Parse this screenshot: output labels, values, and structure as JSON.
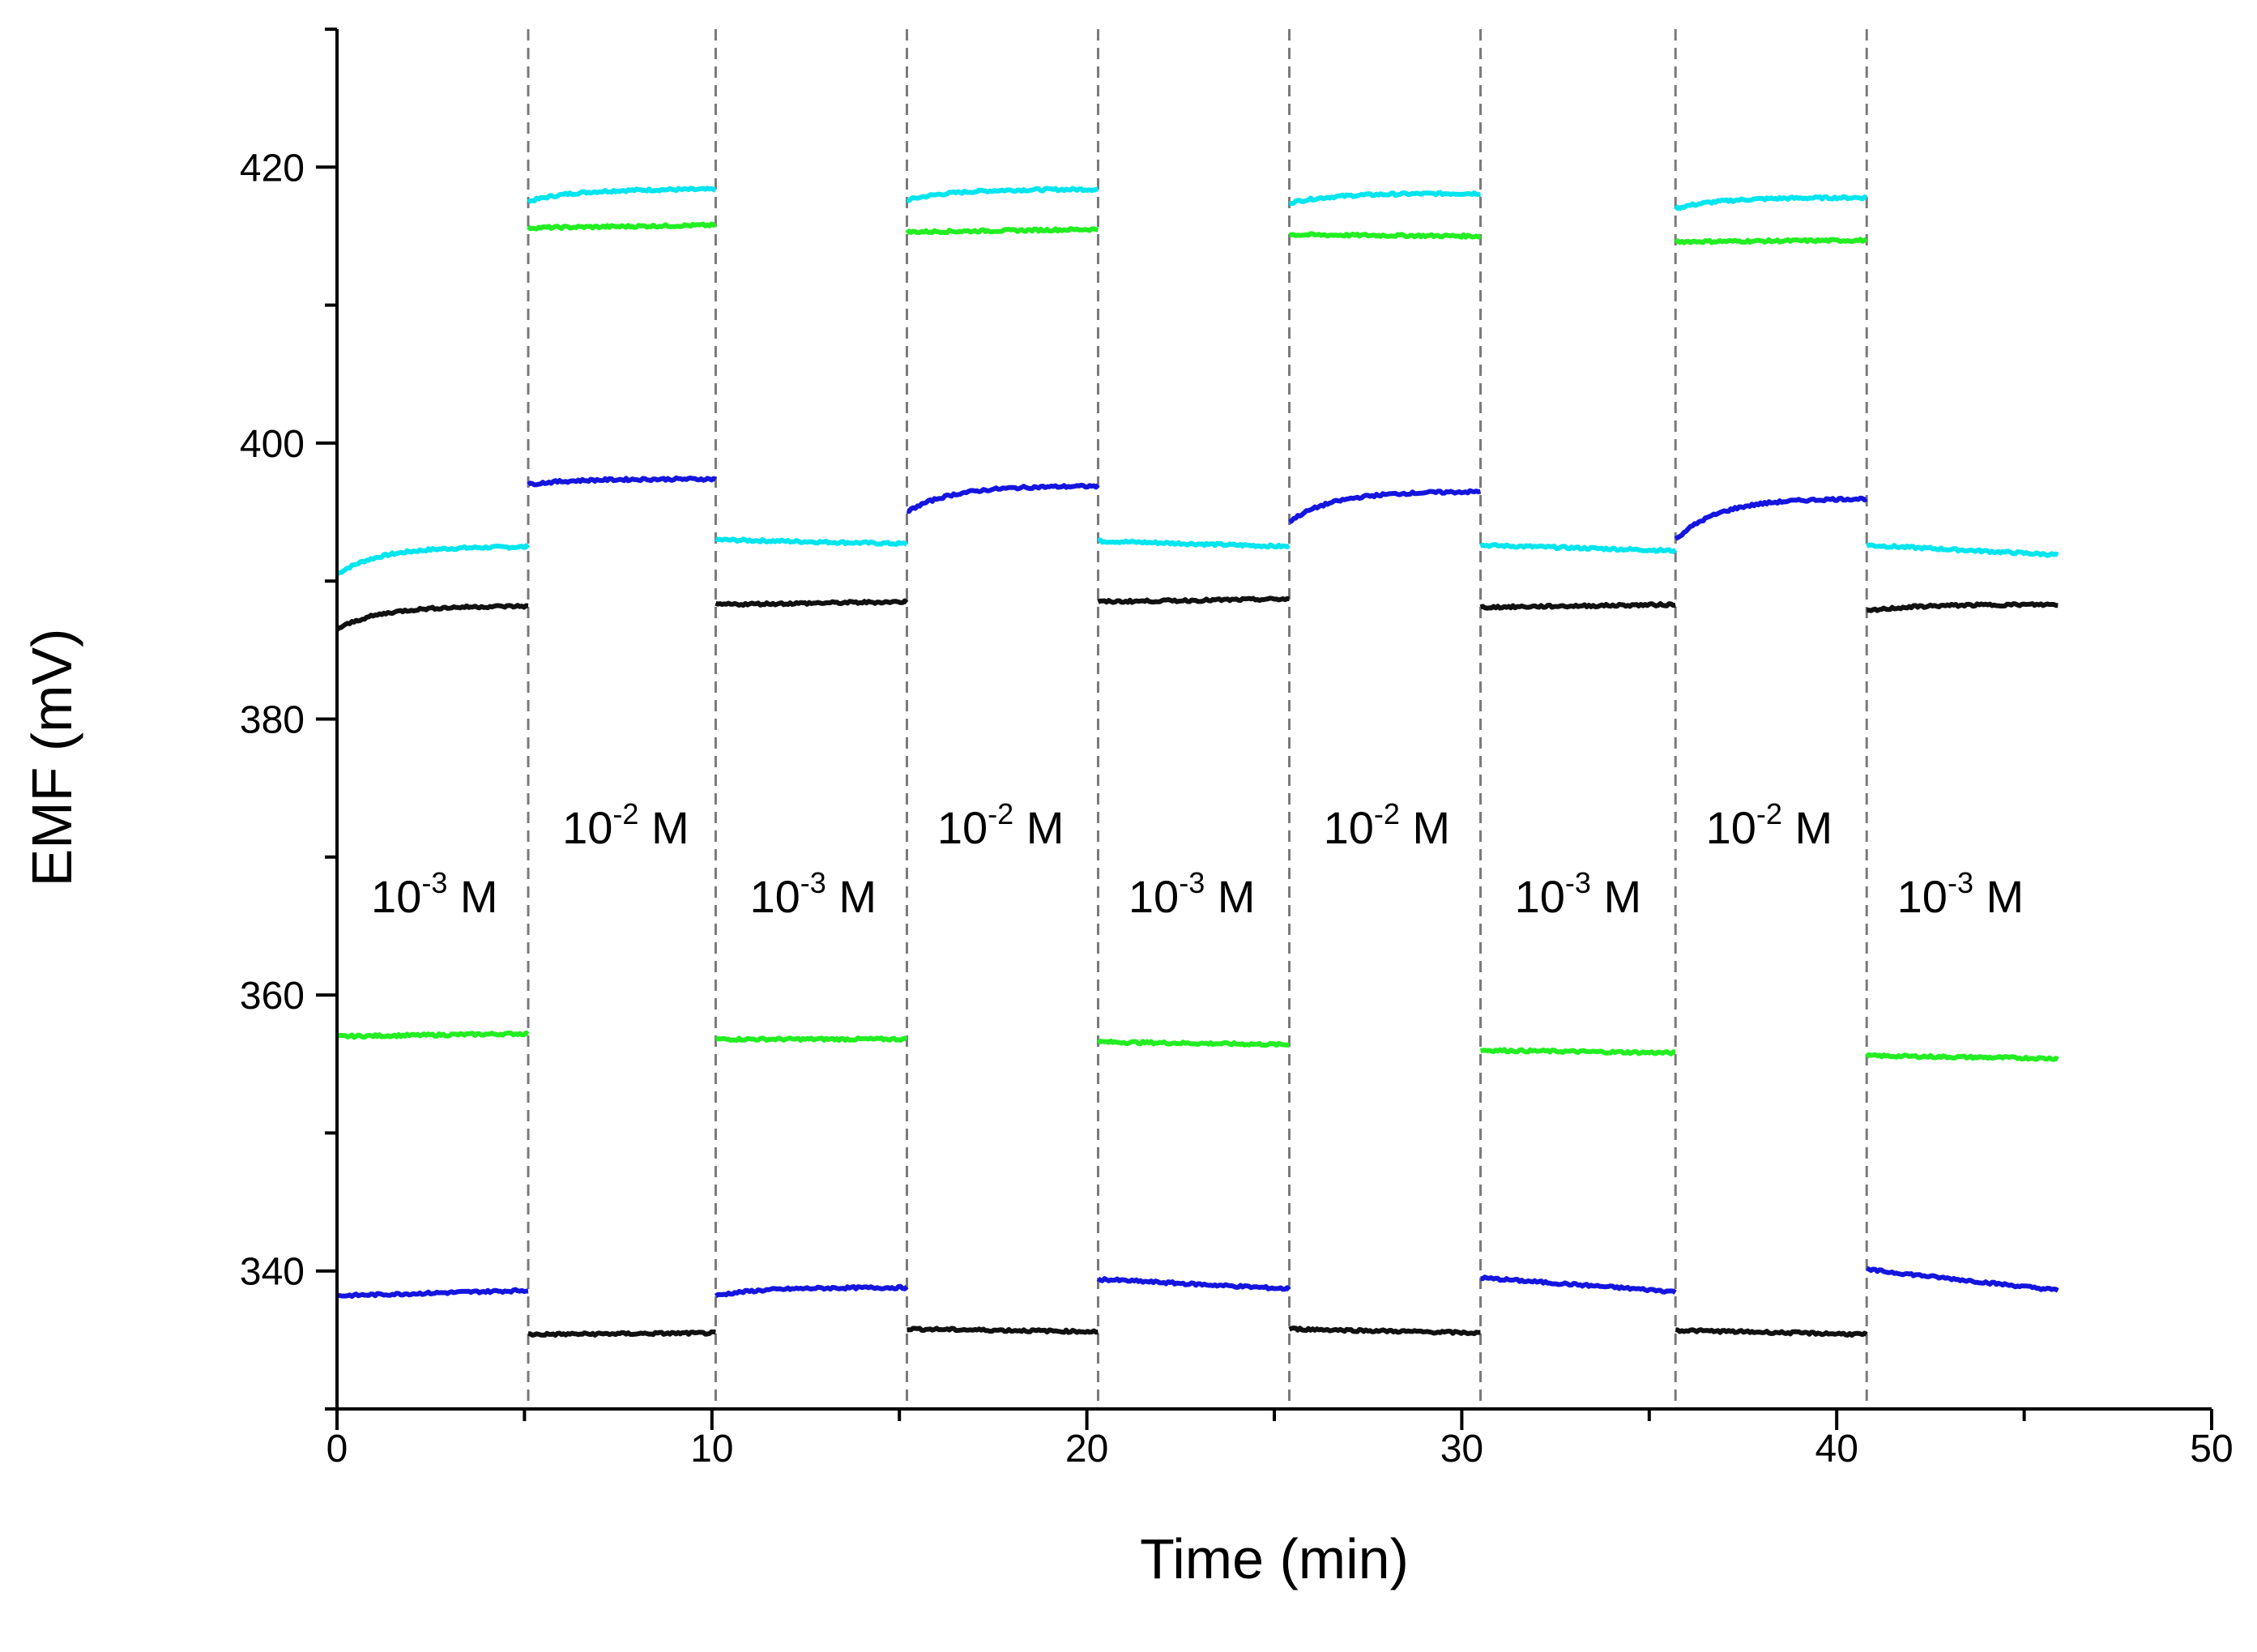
{
  "chart_data": {
    "type": "line",
    "title": "",
    "xlabel": "Time (min)",
    "ylabel": "EMF (mV)",
    "xlim": [
      0,
      50
    ],
    "ylim": [
      330,
      430
    ],
    "xticks": [
      0,
      10,
      20,
      30,
      40,
      50
    ],
    "yticks": [
      340,
      360,
      380,
      400,
      420
    ],
    "x_tick_labels": [
      "0",
      "10",
      "20",
      "30",
      "40",
      "50"
    ],
    "y_tick_labels": [
      "340",
      "360",
      "380",
      "400",
      "420"
    ],
    "boundaries": [
      5.1,
      10.1,
      15.2,
      20.3,
      25.4,
      30.5,
      35.7,
      40.8
    ],
    "concentration_labels": [
      {
        "base": "10",
        "exp": "-3",
        "unit": " M",
        "x": 2.6,
        "y": 366
      },
      {
        "base": "10",
        "exp": "-2",
        "unit": " M",
        "x": 7.7,
        "y": 371
      },
      {
        "base": "10",
        "exp": "-3",
        "unit": " M",
        "x": 12.7,
        "y": 366
      },
      {
        "base": "10",
        "exp": "-2",
        "unit": " M",
        "x": 17.7,
        "y": 371
      },
      {
        "base": "10",
        "exp": "-3",
        "unit": " M",
        "x": 22.8,
        "y": 366
      },
      {
        "base": "10",
        "exp": "-2",
        "unit": " M",
        "x": 28.0,
        "y": 371
      },
      {
        "base": "10",
        "exp": "-3",
        "unit": " M",
        "x": 33.1,
        "y": 366
      },
      {
        "base": "10",
        "exp": "-2",
        "unit": " M",
        "x": 38.2,
        "y": 371
      },
      {
        "base": "10",
        "exp": "-3",
        "unit": " M",
        "x": 43.3,
        "y": 366
      }
    ],
    "series": [
      {
        "name": "cyan",
        "color": "#00e5ee",
        "segments": [
          {
            "t": [
              0,
              5.1
            ],
            "y": [
              390.5,
              392.5
            ],
            "shape": "rise"
          },
          {
            "t": [
              5.1,
              10.1
            ],
            "y": [
              417.5,
              418.4
            ],
            "shape": "rise"
          },
          {
            "t": [
              10.1,
              15.2
            ],
            "y": [
              393.0,
              392.7
            ],
            "shape": "flat"
          },
          {
            "t": [
              15.2,
              20.3
            ],
            "y": [
              417.6,
              418.4
            ],
            "shape": "rise"
          },
          {
            "t": [
              20.3,
              25.4
            ],
            "y": [
              392.9,
              392.5
            ],
            "shape": "flat"
          },
          {
            "t": [
              25.4,
              30.5
            ],
            "y": [
              417.4,
              418.1
            ],
            "shape": "rise"
          },
          {
            "t": [
              30.5,
              35.7
            ],
            "y": [
              392.6,
              392.2
            ],
            "shape": "flat"
          },
          {
            "t": [
              35.7,
              40.8
            ],
            "y": [
              417.0,
              417.8
            ],
            "shape": "rise"
          },
          {
            "t": [
              40.8,
              45.9
            ],
            "y": [
              392.6,
              391.9
            ],
            "shape": "flat"
          }
        ]
      },
      {
        "name": "green",
        "color": "#22ee22",
        "segments": [
          {
            "t": [
              0,
              5.1
            ],
            "y": [
              357.0,
              357.2
            ],
            "shape": "flat"
          },
          {
            "t": [
              5.1,
              10.1
            ],
            "y": [
              415.6,
              415.8
            ],
            "shape": "flat"
          },
          {
            "t": [
              10.1,
              15.2
            ],
            "y": [
              356.8,
              356.8
            ],
            "shape": "flat"
          },
          {
            "t": [
              15.2,
              20.3
            ],
            "y": [
              415.3,
              415.5
            ],
            "shape": "flat"
          },
          {
            "t": [
              20.3,
              25.4
            ],
            "y": [
              356.6,
              356.4
            ],
            "shape": "flat"
          },
          {
            "t": [
              25.4,
              30.5
            ],
            "y": [
              415.1,
              415.0
            ],
            "shape": "flat"
          },
          {
            "t": [
              30.5,
              35.7
            ],
            "y": [
              356.0,
              355.8
            ],
            "shape": "flat"
          },
          {
            "t": [
              35.7,
              40.8
            ],
            "y": [
              414.6,
              414.7
            ],
            "shape": "flat"
          },
          {
            "t": [
              40.8,
              45.9
            ],
            "y": [
              355.6,
              355.4
            ],
            "shape": "flat"
          }
        ]
      },
      {
        "name": "blue",
        "color": "#1515e0",
        "segments": [
          {
            "t": [
              0,
              5.1
            ],
            "y": [
              338.2,
              338.6
            ],
            "shape": "flat"
          },
          {
            "t": [
              5.1,
              10.1
            ],
            "y": [
              397.0,
              397.4
            ],
            "shape": "rise"
          },
          {
            "t": [
              10.1,
              15.2
            ],
            "y": [
              338.2,
              338.8
            ],
            "shape": "rise"
          },
          {
            "t": [
              15.2,
              20.3
            ],
            "y": [
              395.0,
              396.9
            ],
            "shape": "rise"
          },
          {
            "t": [
              20.3,
              25.4
            ],
            "y": [
              339.4,
              338.7
            ],
            "shape": "flat"
          },
          {
            "t": [
              25.4,
              30.5
            ],
            "y": [
              394.3,
              396.5
            ],
            "shape": "rise"
          },
          {
            "t": [
              30.5,
              35.7
            ],
            "y": [
              339.5,
              338.5
            ],
            "shape": "flat"
          },
          {
            "t": [
              35.7,
              40.8
            ],
            "y": [
              393.0,
              396.0
            ],
            "shape": "rise"
          },
          {
            "t": [
              40.8,
              45.9
            ],
            "y": [
              340.1,
              338.6
            ],
            "shape": "flat"
          }
        ]
      },
      {
        "name": "black",
        "color": "#111111",
        "segments": [
          {
            "t": [
              0,
              5.1
            ],
            "y": [
              386.5,
              388.2
            ],
            "shape": "rise"
          },
          {
            "t": [
              5.1,
              10.1
            ],
            "y": [
              335.4,
              335.5
            ],
            "shape": "flat"
          },
          {
            "t": [
              10.1,
              15.2
            ],
            "y": [
              388.3,
              388.5
            ],
            "shape": "flat"
          },
          {
            "t": [
              15.2,
              20.3
            ],
            "y": [
              335.8,
              335.6
            ],
            "shape": "flat"
          },
          {
            "t": [
              20.3,
              25.4
            ],
            "y": [
              388.5,
              388.7
            ],
            "shape": "flat"
          },
          {
            "t": [
              25.4,
              30.5
            ],
            "y": [
              335.8,
              335.5
            ],
            "shape": "flat"
          },
          {
            "t": [
              30.5,
              35.7
            ],
            "y": [
              388.1,
              388.3
            ],
            "shape": "flat"
          },
          {
            "t": [
              35.7,
              40.8
            ],
            "y": [
              335.7,
              335.4
            ],
            "shape": "flat"
          },
          {
            "t": [
              40.8,
              45.9
            ],
            "y": [
              387.8,
              388.3
            ],
            "shape": "rise"
          }
        ]
      }
    ]
  }
}
